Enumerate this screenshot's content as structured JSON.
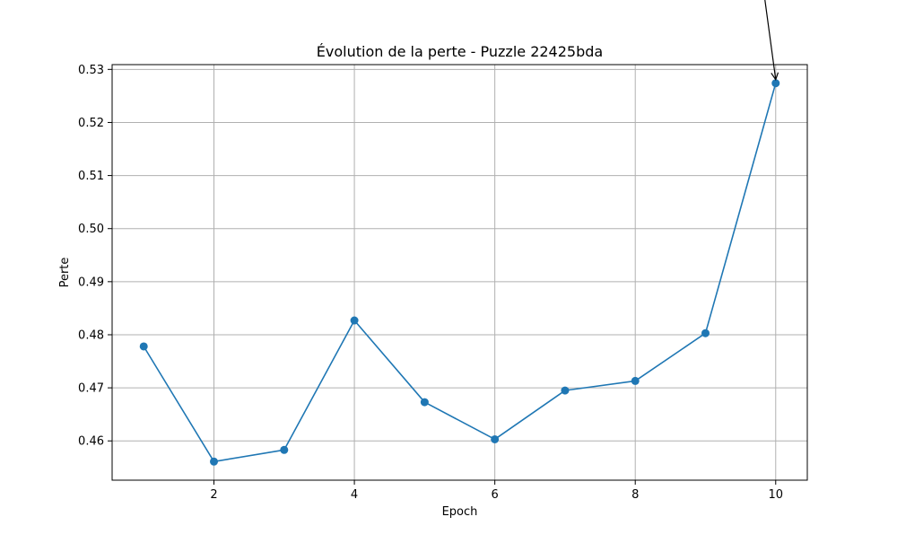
{
  "chart_data": {
    "type": "line",
    "title": "Évolution de la perte - Puzzle 22425bda",
    "xlabel": "Epoch",
    "ylabel": "Perte",
    "xlim": [
      0.55,
      10.45
    ],
    "ylim": [
      0.4526,
      0.5309
    ],
    "xticks": [
      2,
      4,
      6,
      8,
      10
    ],
    "xtick_labels": [
      "2",
      "4",
      "6",
      "8",
      "10"
    ],
    "yticks": [
      0.46,
      0.47,
      0.48,
      0.49,
      0.5,
      0.51,
      0.52,
      0.53
    ],
    "ytick_labels": [
      "0.46",
      "0.47",
      "0.48",
      "0.49",
      "0.50",
      "0.51",
      "0.52",
      "0.53"
    ],
    "grid": true,
    "x": [
      1,
      2,
      3,
      4,
      5,
      6,
      7,
      8,
      9,
      10
    ],
    "series": [
      {
        "values": [
          0.4778,
          0.4561,
          0.4583,
          0.4827,
          0.4673,
          0.4603,
          0.4695,
          0.4713,
          0.4803,
          0.5274
        ],
        "color": "#1f77b4",
        "marker": "circle"
      }
    ],
    "annotations": [
      {
        "type": "arrow",
        "text": "",
        "target_x": 10,
        "target_y": 0.5274
      }
    ],
    "colors": {
      "grid": "#b0b0b0",
      "axis": "#000000",
      "arrow": "#000000"
    }
  }
}
